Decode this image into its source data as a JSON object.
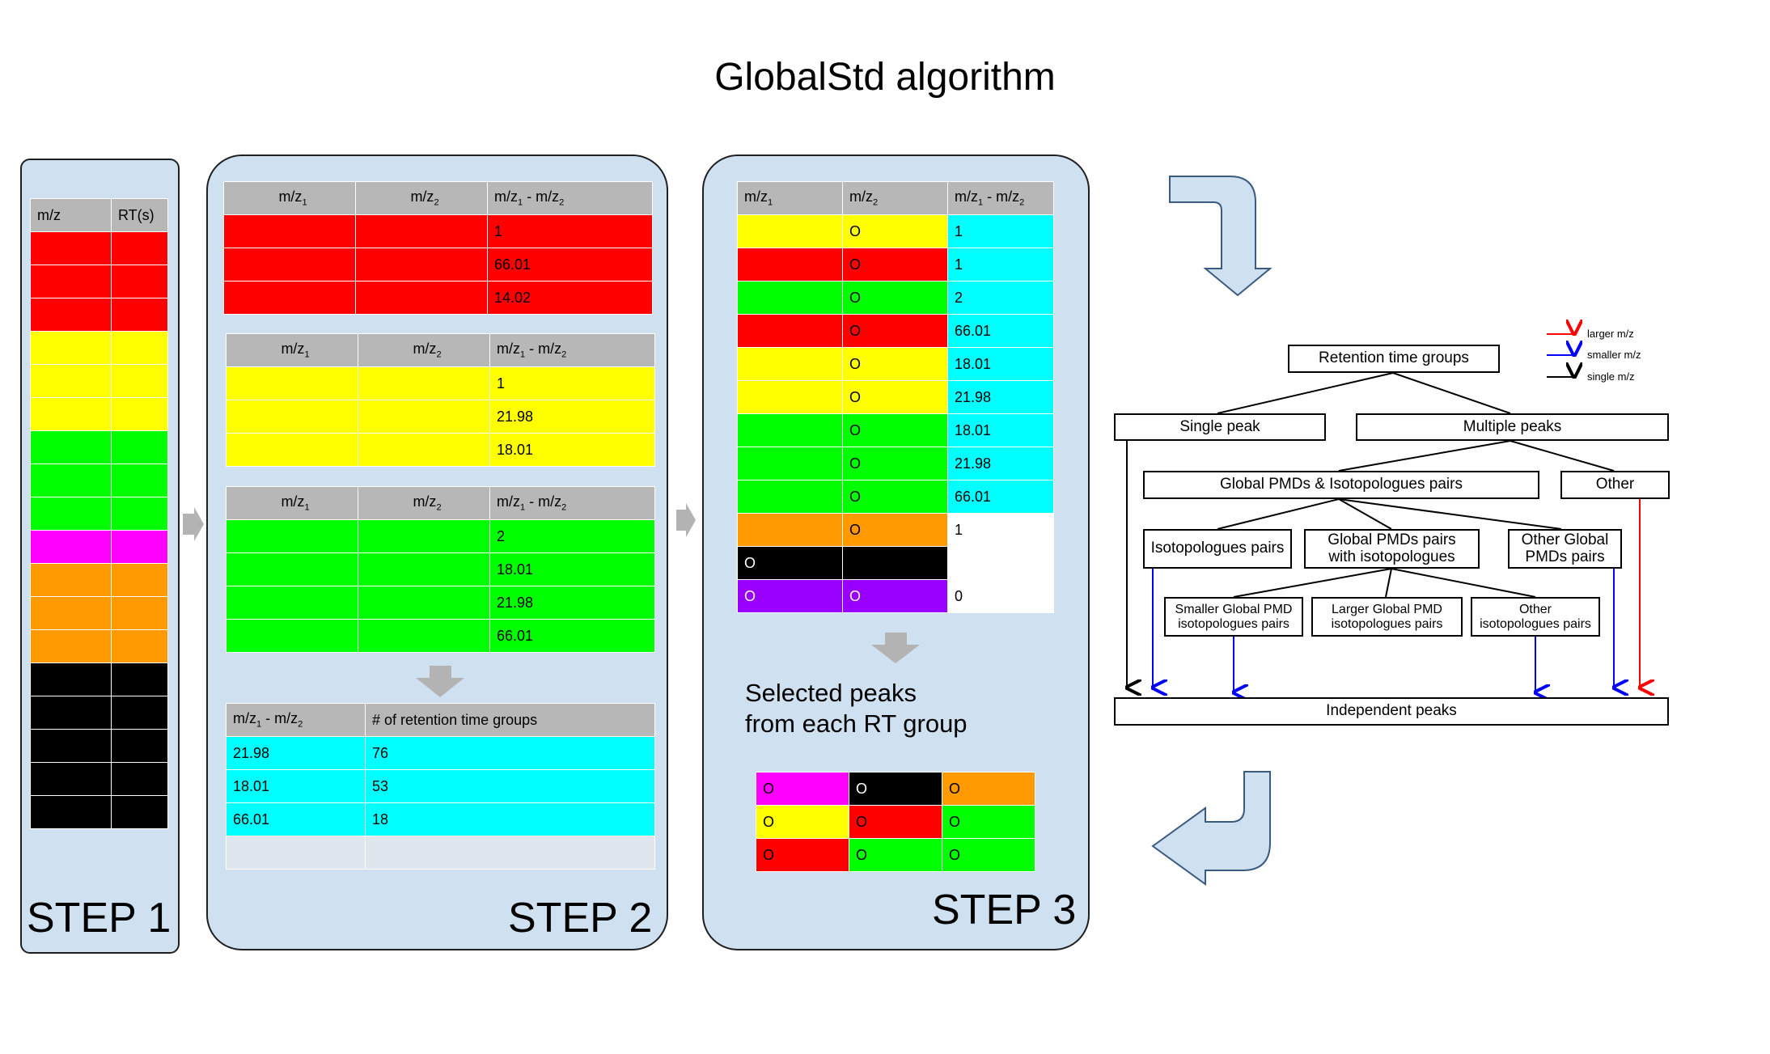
{
  "title": "GlobalStd algorithm",
  "steps": [
    "STEP 1",
    "STEP 2",
    "STEP 3"
  ],
  "step1": {
    "headers": [
      "m/z",
      "RT(s)"
    ],
    "rows": [
      "red",
      "red",
      "red",
      "yellow",
      "yellow",
      "yellow",
      "green",
      "green",
      "green",
      "magenta",
      "orange",
      "orange",
      "orange",
      "black",
      "black",
      "black",
      "black",
      "black"
    ]
  },
  "step2": {
    "col1": "m/z",
    "col1_sub": "1",
    "col2": "m/z",
    "col2_sub": "2",
    "diff_a": "m/z",
    "diff_a_sub": "1",
    "diff_b": " - m/z",
    "diff_b_sub": "2",
    "tables": [
      {
        "color": "red",
        "values": [
          "1",
          "66.01",
          "14.02"
        ]
      },
      {
        "color": "yellow",
        "values": [
          "1",
          "21.98",
          "18.01"
        ]
      },
      {
        "color": "green",
        "values": [
          "2",
          "18.01",
          "21.98",
          "66.01"
        ]
      }
    ],
    "summary": {
      "header_count": "# of retention time groups",
      "rows": [
        [
          "21.98",
          "76"
        ],
        [
          "18.01",
          "53"
        ],
        [
          "66.01",
          "18"
        ],
        [
          "",
          ""
        ]
      ]
    }
  },
  "step3": {
    "rows": [
      {
        "c1": "yellow",
        "m1": "",
        "c2": "yellow",
        "m2": "O",
        "c3": "cyan",
        "v": "1"
      },
      {
        "c1": "red",
        "m1": "",
        "c2": "red",
        "m2": "O",
        "c3": "cyan",
        "v": "1"
      },
      {
        "c1": "green",
        "m1": "",
        "c2": "green",
        "m2": "O",
        "c3": "cyan",
        "v": "2"
      },
      {
        "c1": "red",
        "m1": "",
        "c2": "red",
        "m2": "O",
        "c3": "cyan",
        "v": "66.01"
      },
      {
        "c1": "yellow",
        "m1": "",
        "c2": "yellow",
        "m2": "O",
        "c3": "cyan",
        "v": "18.01"
      },
      {
        "c1": "yellow",
        "m1": "",
        "c2": "yellow",
        "m2": "O",
        "c3": "cyan",
        "v": "21.98"
      },
      {
        "c1": "green",
        "m1": "",
        "c2": "green",
        "m2": "O",
        "c3": "cyan",
        "v": "18.01"
      },
      {
        "c1": "green",
        "m1": "",
        "c2": "green",
        "m2": "O",
        "c3": "cyan",
        "v": "21.98"
      },
      {
        "c1": "green",
        "m1": "",
        "c2": "green",
        "m2": "O",
        "c3": "cyan",
        "v": "66.01"
      },
      {
        "c1": "orange",
        "m1": "",
        "c2": "orange",
        "m2": "O",
        "c3": "white",
        "v": "1"
      },
      {
        "c1": "black",
        "m1": "O",
        "c2": "black",
        "m2": "",
        "c3": "white",
        "v": ""
      },
      {
        "c1": "purple",
        "m1": "O",
        "c2": "purple",
        "m2": "O",
        "c3": "white",
        "v": "0"
      }
    ],
    "selected_line1": "Selected peaks",
    "selected_line2": "from each RT group",
    "selected_grid": [
      [
        {
          "c": "magenta",
          "t": "O"
        },
        {
          "c": "black",
          "t": "O"
        },
        {
          "c": "orange",
          "t": "O"
        }
      ],
      [
        {
          "c": "yellow",
          "t": "O"
        },
        {
          "c": "red",
          "t": "O"
        },
        {
          "c": "green",
          "t": "O"
        }
      ],
      [
        {
          "c": "red",
          "t": "O"
        },
        {
          "c": "green",
          "t": "O"
        },
        {
          "c": "green",
          "t": "O"
        }
      ]
    ]
  },
  "flowchart": {
    "root": "Retention time groups",
    "single": "Single peak",
    "multiple": "Multiple peaks",
    "global": "Global PMDs & Isotopologues pairs",
    "other": "Other",
    "iso": "Isotopologues pairs",
    "gp_iso_1": "Global PMDs pairs",
    "gp_iso_2": "with isotopologues",
    "other_global_1": "Other Global",
    "other_global_2": "PMDs pairs",
    "smaller_1": "Smaller Global PMD",
    "smaller_2": "isotopologues pairs",
    "larger_1": "Larger Global PMD",
    "larger_2": "isotopologues pairs",
    "other_iso_1": "Other",
    "other_iso_2": "isotopologues pairs",
    "independent": "Independent peaks",
    "legend": [
      {
        "label": "larger m/z",
        "color": "#ff0000"
      },
      {
        "label": "smaller m/z",
        "color": "#0000ff"
      },
      {
        "label": "single m/z",
        "color": "#000000"
      }
    ]
  },
  "colors": {
    "panel": "#cfe0f1",
    "red": "#ff0000",
    "yellow": "#ffff00",
    "green": "#00ff00",
    "magenta": "#ff00ff",
    "orange": "#ff9900",
    "black": "#000000",
    "cyan": "#00ffff",
    "purple": "#9900ff",
    "header_gray": "#b7b7b7",
    "arrow_gray": "#b3b3b3",
    "big_arrow": "#cfe0f1"
  }
}
